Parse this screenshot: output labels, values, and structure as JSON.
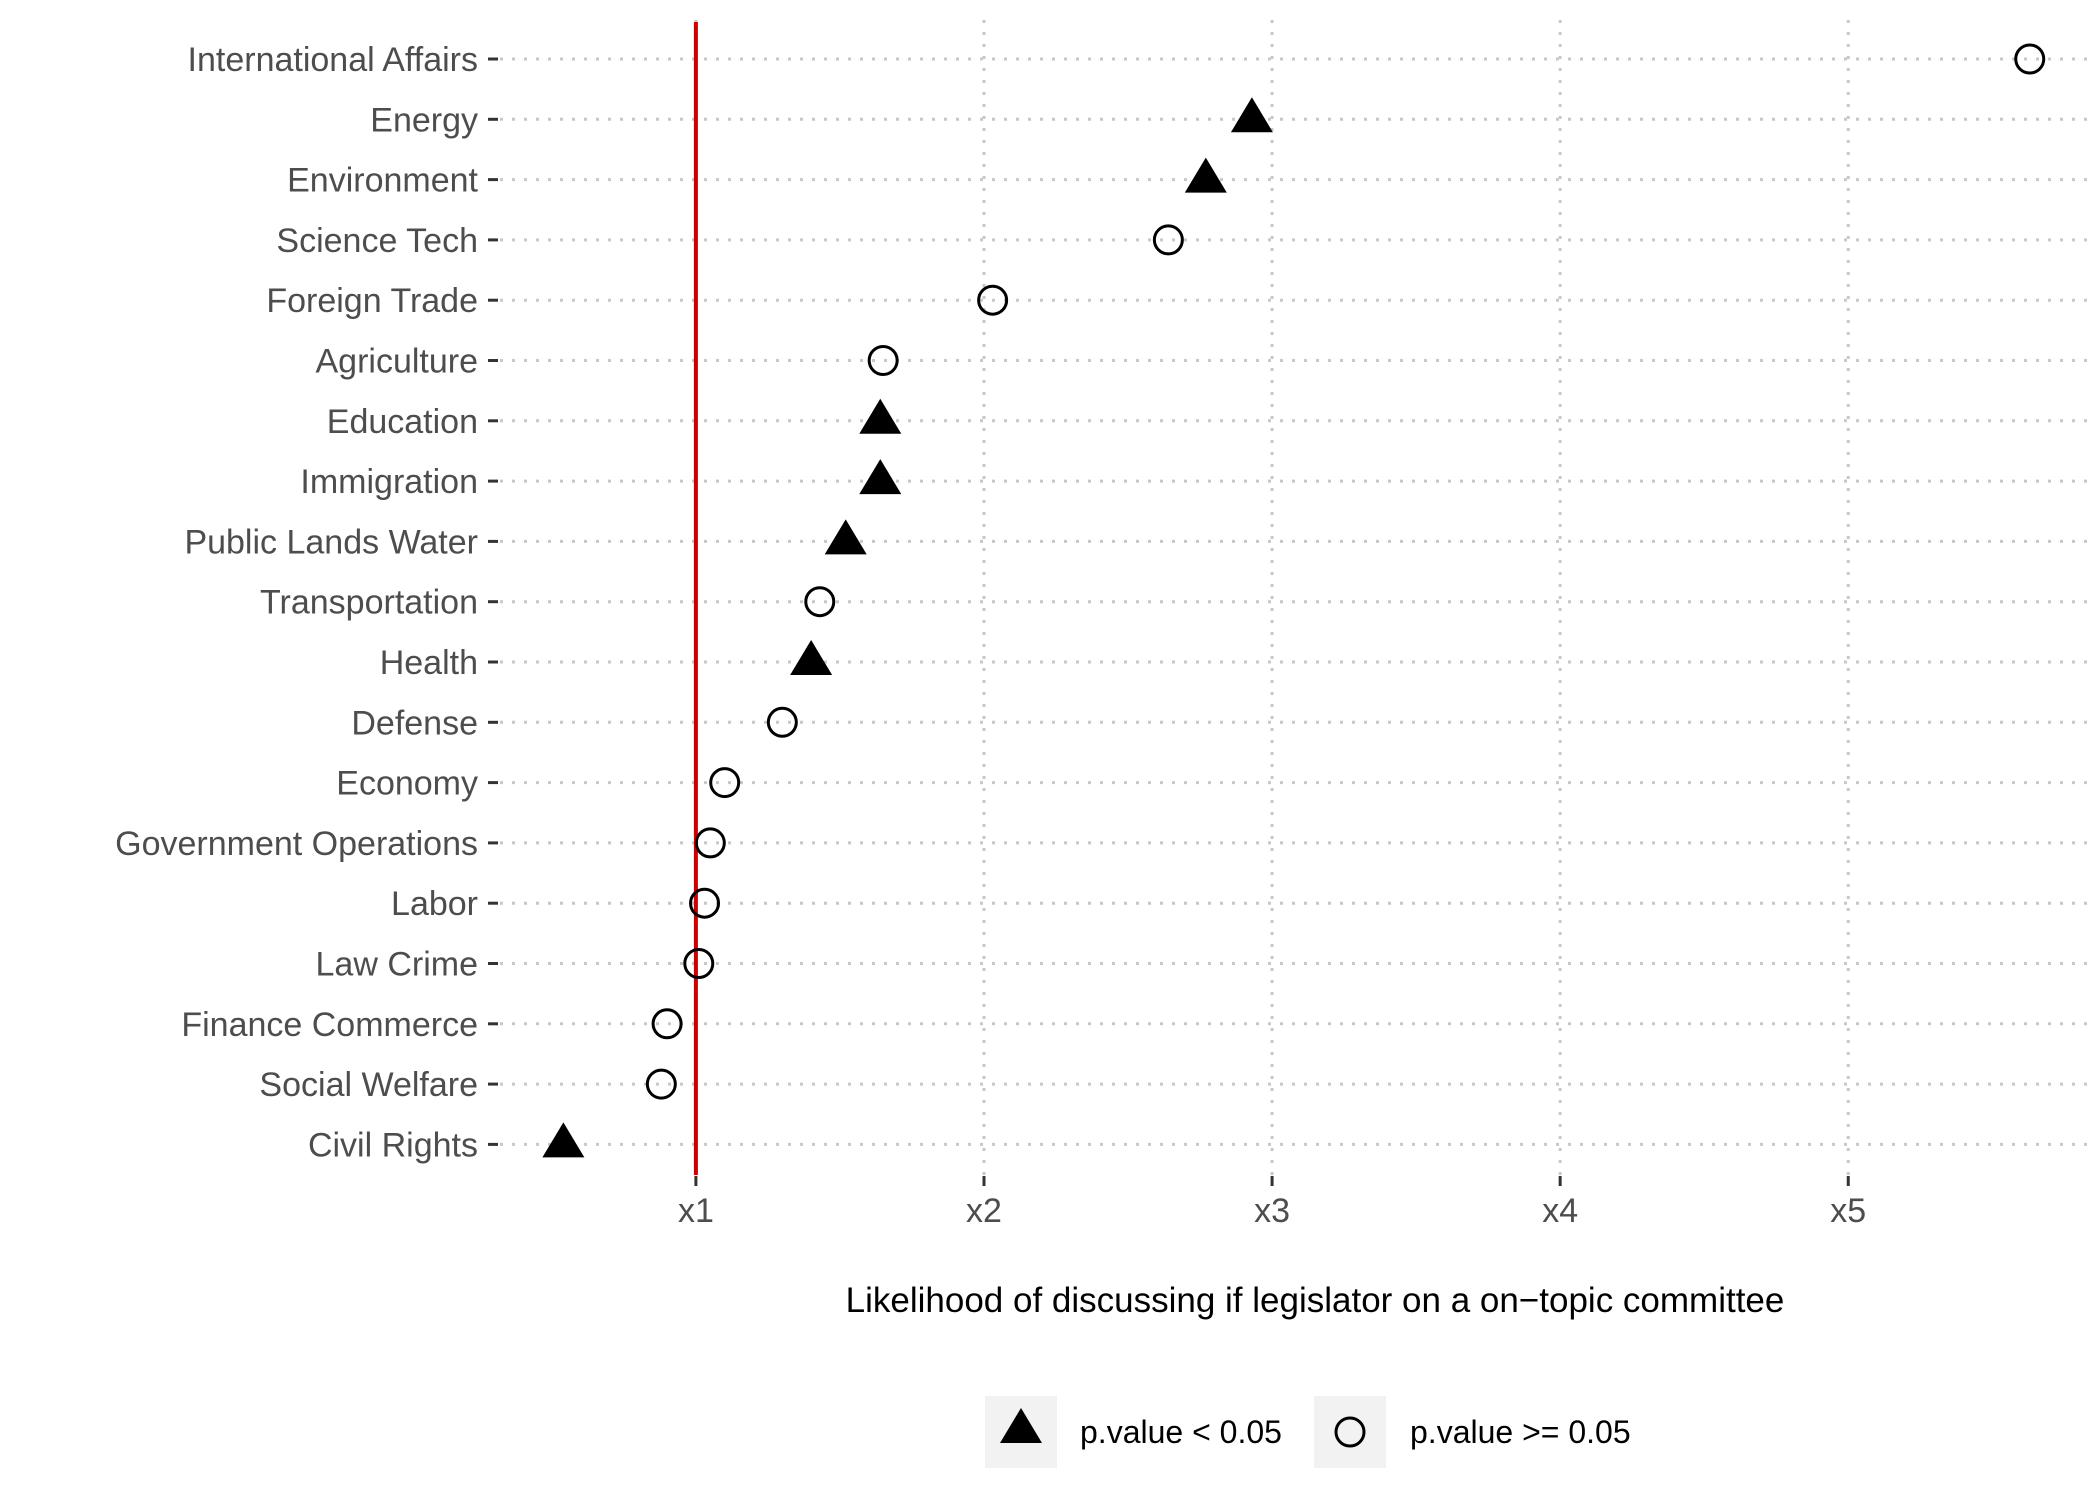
{
  "chart_data": {
    "type": "scatter",
    "title": "",
    "xlabel": "Likelihood of discussing if legislator on a on−topic committee",
    "ylabel": "",
    "x_ticks": [
      {
        "value": 1,
        "label": "x1"
      },
      {
        "value": 2,
        "label": "x2"
      },
      {
        "value": 3,
        "label": "x3"
      },
      {
        "value": 4,
        "label": "x4"
      },
      {
        "value": 5,
        "label": "x5"
      }
    ],
    "xlim": [
      0.32,
      5.86
    ],
    "reference_line": {
      "x": 1,
      "color": "#cc0000"
    },
    "grid": "dotted",
    "legend_position": "bottom",
    "legend": [
      {
        "key": "sig",
        "label": "p.value < 0.05",
        "marker": "filled-triangle"
      },
      {
        "key": "nonsig",
        "label": "p.value >= 0.05",
        "marker": "open-circle"
      }
    ],
    "points": [
      {
        "category": "International Affairs",
        "value": 5.63,
        "group": "nonsig"
      },
      {
        "category": "Energy",
        "value": 2.93,
        "group": "sig"
      },
      {
        "category": "Environment",
        "value": 2.77,
        "group": "sig"
      },
      {
        "category": "Science Tech",
        "value": 2.64,
        "group": "nonsig"
      },
      {
        "category": "Foreign Trade",
        "value": 2.03,
        "group": "nonsig"
      },
      {
        "category": "Agriculture",
        "value": 1.65,
        "group": "nonsig"
      },
      {
        "category": "Education",
        "value": 1.64,
        "group": "sig"
      },
      {
        "category": "Immigration",
        "value": 1.64,
        "group": "sig"
      },
      {
        "category": "Public Lands Water",
        "value": 1.52,
        "group": "sig"
      },
      {
        "category": "Transportation",
        "value": 1.43,
        "group": "nonsig"
      },
      {
        "category": "Health",
        "value": 1.4,
        "group": "sig"
      },
      {
        "category": "Defense",
        "value": 1.3,
        "group": "nonsig"
      },
      {
        "category": "Economy",
        "value": 1.1,
        "group": "nonsig"
      },
      {
        "category": "Government Operations",
        "value": 1.05,
        "group": "nonsig"
      },
      {
        "category": "Labor",
        "value": 1.03,
        "group": "nonsig"
      },
      {
        "category": "Law Crime",
        "value": 1.01,
        "group": "nonsig"
      },
      {
        "category": "Finance Commerce",
        "value": 0.9,
        "group": "nonsig"
      },
      {
        "category": "Social Welfare",
        "value": 0.88,
        "group": "nonsig"
      },
      {
        "category": "Civil Rights",
        "value": 0.54,
        "group": "sig"
      }
    ]
  }
}
